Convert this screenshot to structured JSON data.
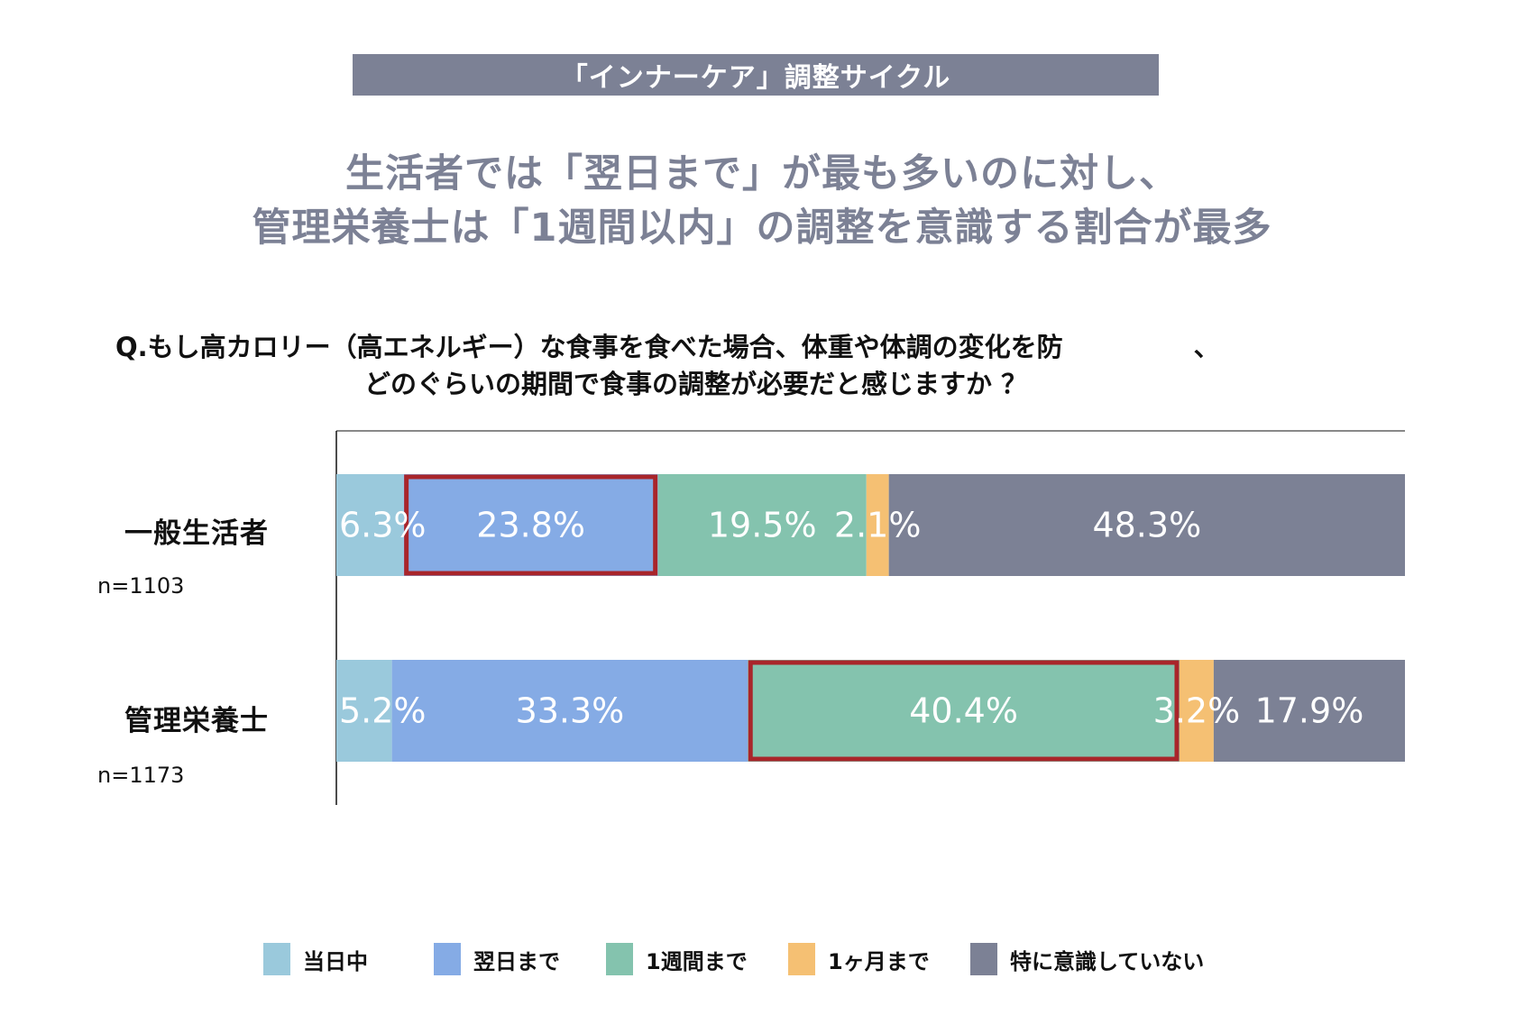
{
  "banner": {
    "title": "「インナーケア」調整サイクル"
  },
  "headline": {
    "line1": "生活者では「翌日まで」が最も多いのに対し、",
    "line2": "管理栄養士は「1週間以内」の調整を意識する割合が最多"
  },
  "question": {
    "line1": "Q.もし高カロリー（高エネルギー）な食事を食べた場合、体重や体調の変化を防　　　　　、",
    "line2": "どのぐらいの期間で食事の調整が必要だと感じますか ？"
  },
  "rows": [
    {
      "label": "一般生活者",
      "n": "n=1103"
    },
    {
      "label": "管理栄養士",
      "n": "n=1173"
    }
  ],
  "chart_data": {
    "type": "bar",
    "orientation": "horizontal",
    "stacked": true,
    "categories": [
      "一般生活者",
      "管理栄養士"
    ],
    "series": [
      {
        "name": "当日中",
        "values": [
          6.3,
          5.2
        ],
        "labels": [
          "6.3%",
          "5.2%"
        ],
        "color": "#9ac9dc"
      },
      {
        "name": "翌日まで",
        "values": [
          23.8,
          33.3
        ],
        "labels": [
          "23.8%",
          "33.3%"
        ],
        "color": "#85abe5"
      },
      {
        "name": "1週間まで",
        "values": [
          19.5,
          40.4
        ],
        "labels": [
          "19.5%",
          "40.4%"
        ],
        "color": "#84c3ae"
      },
      {
        "name": "1ヶ月まで",
        "values": [
          2.1,
          3.2
        ],
        "labels": [
          "2.1%",
          "3.2%"
        ],
        "color": "#f5c073"
      },
      {
        "name": "特に意識していない",
        "values": [
          48.3,
          17.9
        ],
        "labels": [
          "48.3%",
          "17.9%"
        ],
        "color": "#7c8195"
      }
    ],
    "xlim": [
      0,
      100
    ],
    "highlights": [
      {
        "category": "一般生活者",
        "series": "翌日まで"
      },
      {
        "category": "管理栄養士",
        "series": "1週間まで"
      }
    ],
    "highlight_color": "#a9252a",
    "legend_position": "bottom"
  },
  "legend": [
    {
      "label": "当日中",
      "color": "#9ac9dc"
    },
    {
      "label": "翌日まで",
      "color": "#85abe5"
    },
    {
      "label": "1週間まで",
      "color": "#84c3ae"
    },
    {
      "label": "1ヶ月まで",
      "color": "#f5c073"
    },
    {
      "label": "特に意識していない",
      "color": "#7c8195"
    }
  ]
}
